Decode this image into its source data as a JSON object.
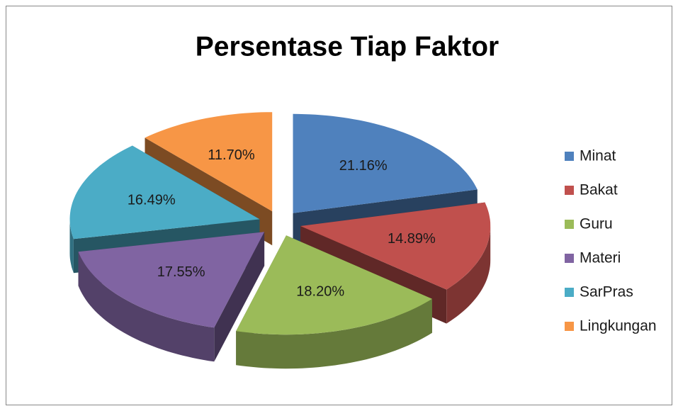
{
  "chart_data": {
    "type": "pie",
    "title": "Persentase Tiap Faktor",
    "categories": [
      "Minat",
      "Bakat",
      "Guru",
      "Materi",
      "SarPras",
      "Lingkungan"
    ],
    "values": [
      21.16,
      14.89,
      18.2,
      17.55,
      16.49,
      11.7
    ],
    "value_labels": [
      "21.16%",
      "14.89%",
      "18.20%",
      "17.55%",
      "16.49%",
      "11.70%"
    ],
    "colors": [
      "#4f81bd",
      "#c0504d",
      "#9bbb59",
      "#8064a2",
      "#4bacc6",
      "#f79646"
    ],
    "legend": "right"
  }
}
